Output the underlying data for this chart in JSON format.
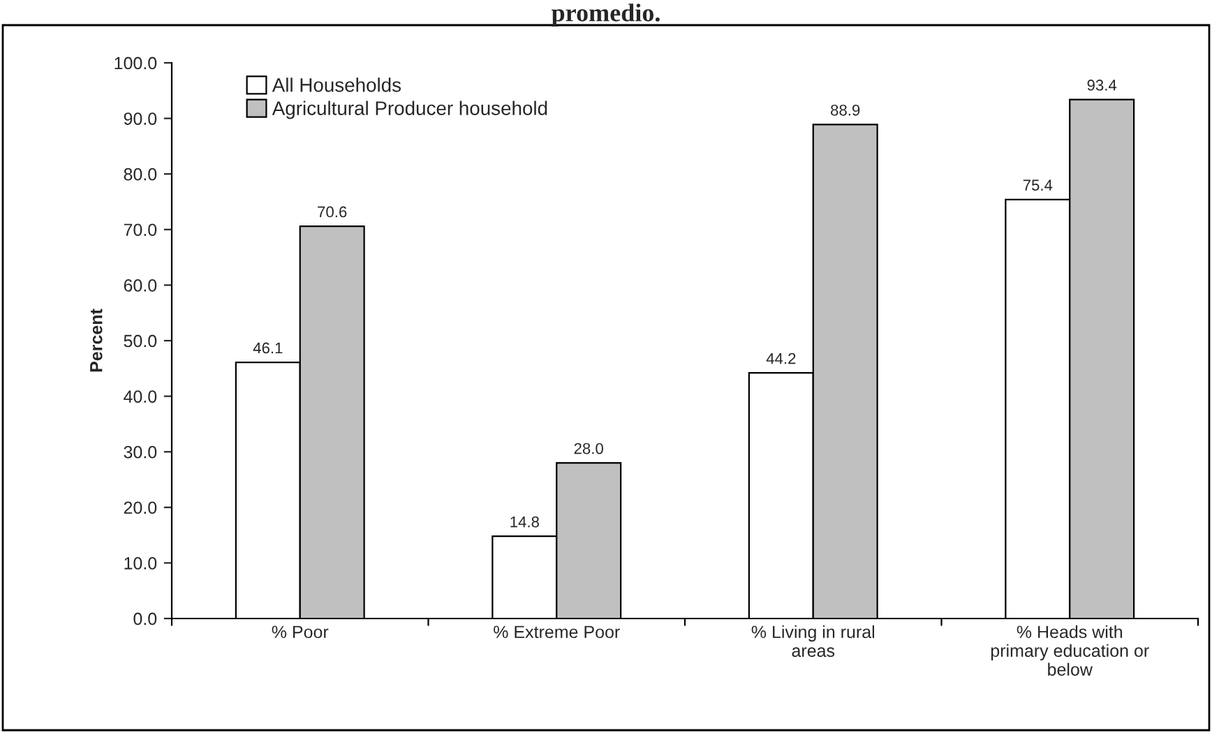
{
  "chart_data": {
    "type": "bar",
    "title": "promedio.",
    "ylabel": "Percent",
    "categories": [
      "% Poor",
      "% Extreme Poor",
      "% Living in rural\nareas",
      "% Heads with\nprimary education or\nbelow"
    ],
    "series": [
      {
        "name": "All Households",
        "color": "#ffffff",
        "values": [
          46.1,
          14.8,
          44.2,
          75.4
        ]
      },
      {
        "name": "Agricultural Producer household",
        "color": "#c0c0c0",
        "values": [
          70.6,
          28.0,
          88.9,
          93.4
        ]
      }
    ],
    "value_labels": [
      [
        "46.1",
        "14.8",
        "44.2",
        "75.4"
      ],
      [
        "70.6",
        "28.0",
        "88.9",
        "93.4"
      ]
    ],
    "ylim": [
      0,
      100
    ],
    "yticks": [
      {
        "value": 0,
        "label": "0.0"
      },
      {
        "value": 10,
        "label": "10.0"
      },
      {
        "value": 20,
        "label": "20.0"
      },
      {
        "value": 30,
        "label": "30.0"
      },
      {
        "value": 40,
        "label": "40.0"
      },
      {
        "value": 50,
        "label": "50.0"
      },
      {
        "value": 60,
        "label": "60.0"
      },
      {
        "value": 70,
        "label": "70.0"
      },
      {
        "value": 80,
        "label": "80.0"
      },
      {
        "value": 90,
        "label": "90.0"
      },
      {
        "value": 100,
        "label": "100.0"
      }
    ],
    "grid": false,
    "legend": "top left"
  }
}
